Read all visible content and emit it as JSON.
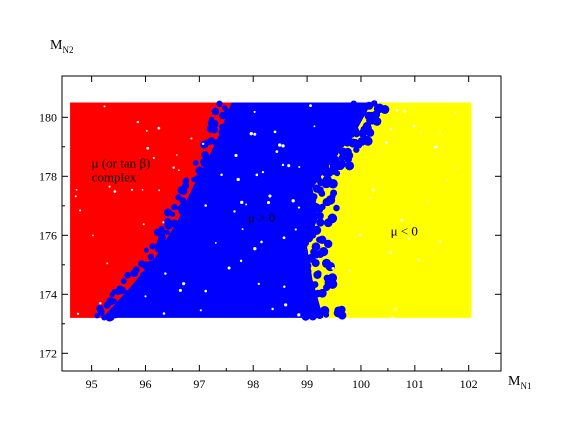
{
  "chart_data": {
    "type": "scatter",
    "title": "",
    "xlabel": {
      "main": "M",
      "sub": "N1"
    },
    "ylabel": {
      "main": "M",
      "sub": "N2"
    },
    "xlim": [
      94.45,
      102.6
    ],
    "ylim": [
      171.4,
      181.4
    ],
    "x_ticks": [
      95,
      96,
      97,
      98,
      99,
      100,
      101,
      102
    ],
    "y_ticks": [
      172,
      174,
      176,
      178,
      180
    ],
    "grid": false,
    "colors": {
      "complex": "#ff0000",
      "mu_positive": "#0000ff",
      "mu_negative": "#ffff00"
    },
    "regions": [
      {
        "name": "complex",
        "label_lines": [
          "μ   (or tan β)",
          "complex"
        ],
        "label_at": [
          95.0,
          178.3
        ],
        "x_range": [
          94.6,
          97.6
        ],
        "y_range": [
          173.2,
          180.5
        ]
      },
      {
        "name": "mu_positive",
        "label_lines": [
          "μ  > 0"
        ],
        "label_at": [
          97.9,
          176.45
        ],
        "boundary_left": [
          [
            95.2,
            173.2
          ],
          [
            95.7,
            174.2
          ],
          [
            96.2,
            175.3
          ],
          [
            96.6,
            176.5
          ],
          [
            96.9,
            177.7
          ],
          [
            97.3,
            179.1
          ],
          [
            97.6,
            180.5
          ]
        ],
        "boundary_right": [
          [
            99.3,
            173.2
          ],
          [
            99.1,
            174.5
          ],
          [
            99.0,
            175.6
          ],
          [
            99.2,
            176.6
          ],
          [
            99.1,
            177.6
          ],
          [
            99.5,
            178.6
          ],
          [
            99.9,
            179.5
          ],
          [
            100.2,
            180.5
          ]
        ]
      },
      {
        "name": "mu_negative",
        "label_lines": [
          "μ   < 0"
        ],
        "label_at": [
          100.55,
          176.0
        ],
        "x_range": [
          99.0,
          102.05
        ],
        "y_range": [
          173.2,
          180.5
        ]
      }
    ]
  }
}
